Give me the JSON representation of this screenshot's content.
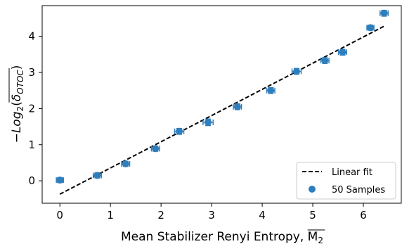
{
  "chart_data": {
    "type": "scatter",
    "xlabel": "Mean Stabilizer Renyi Entropy, M",
    "xlabel_overline_text": "M",
    "xlabel_subscript": "2",
    "ylabel_prefix": "−Log",
    "ylabel_subscript": "2",
    "ylabel_delta": "δ",
    "ylabel_delta_subscript": "OTOC",
    "xlim": [
      -0.35,
      6.75
    ],
    "ylim": [
      -0.62,
      4.85
    ],
    "xticks": [
      0,
      1,
      2,
      3,
      4,
      5,
      6
    ],
    "yticks": [
      0,
      1,
      2,
      3,
      4
    ],
    "series": [
      {
        "name": "50 Samples",
        "kind": "scatter",
        "color": "#2f7ebc",
        "points": [
          {
            "x": 0.0,
            "y": 0.02,
            "xerr": 0.07,
            "yerr": 0.07
          },
          {
            "x": 0.74,
            "y": 0.15,
            "xerr": 0.08,
            "yerr": 0.07
          },
          {
            "x": 1.3,
            "y": 0.47,
            "xerr": 0.08,
            "yerr": 0.07
          },
          {
            "x": 1.89,
            "y": 0.89,
            "xerr": 0.08,
            "yerr": 0.07
          },
          {
            "x": 2.36,
            "y": 1.37,
            "xerr": 0.09,
            "yerr": 0.08
          },
          {
            "x": 2.93,
            "y": 1.62,
            "xerr": 0.1,
            "yerr": 0.09
          },
          {
            "x": 3.51,
            "y": 2.05,
            "xerr": 0.08,
            "yerr": 0.08
          },
          {
            "x": 4.17,
            "y": 2.5,
            "xerr": 0.08,
            "yerr": 0.08
          },
          {
            "x": 4.68,
            "y": 3.03,
            "xerr": 0.09,
            "yerr": 0.08
          },
          {
            "x": 5.24,
            "y": 3.33,
            "xerr": 0.08,
            "yerr": 0.08
          },
          {
            "x": 5.59,
            "y": 3.56,
            "xerr": 0.08,
            "yerr": 0.08
          },
          {
            "x": 6.14,
            "y": 4.24,
            "xerr": 0.07,
            "yerr": 0.07
          },
          {
            "x": 6.41,
            "y": 4.64,
            "xerr": 0.08,
            "yerr": 0.08
          }
        ]
      },
      {
        "name": "Linear fit",
        "kind": "line",
        "style": "dashed",
        "color": "#000000",
        "x": [
          0.0,
          6.41
        ],
        "y": [
          -0.37,
          4.28
        ]
      }
    ],
    "legend": {
      "placement": "lower-right",
      "entries": [
        "Linear fit",
        "50 Samples"
      ]
    },
    "grid": false
  }
}
